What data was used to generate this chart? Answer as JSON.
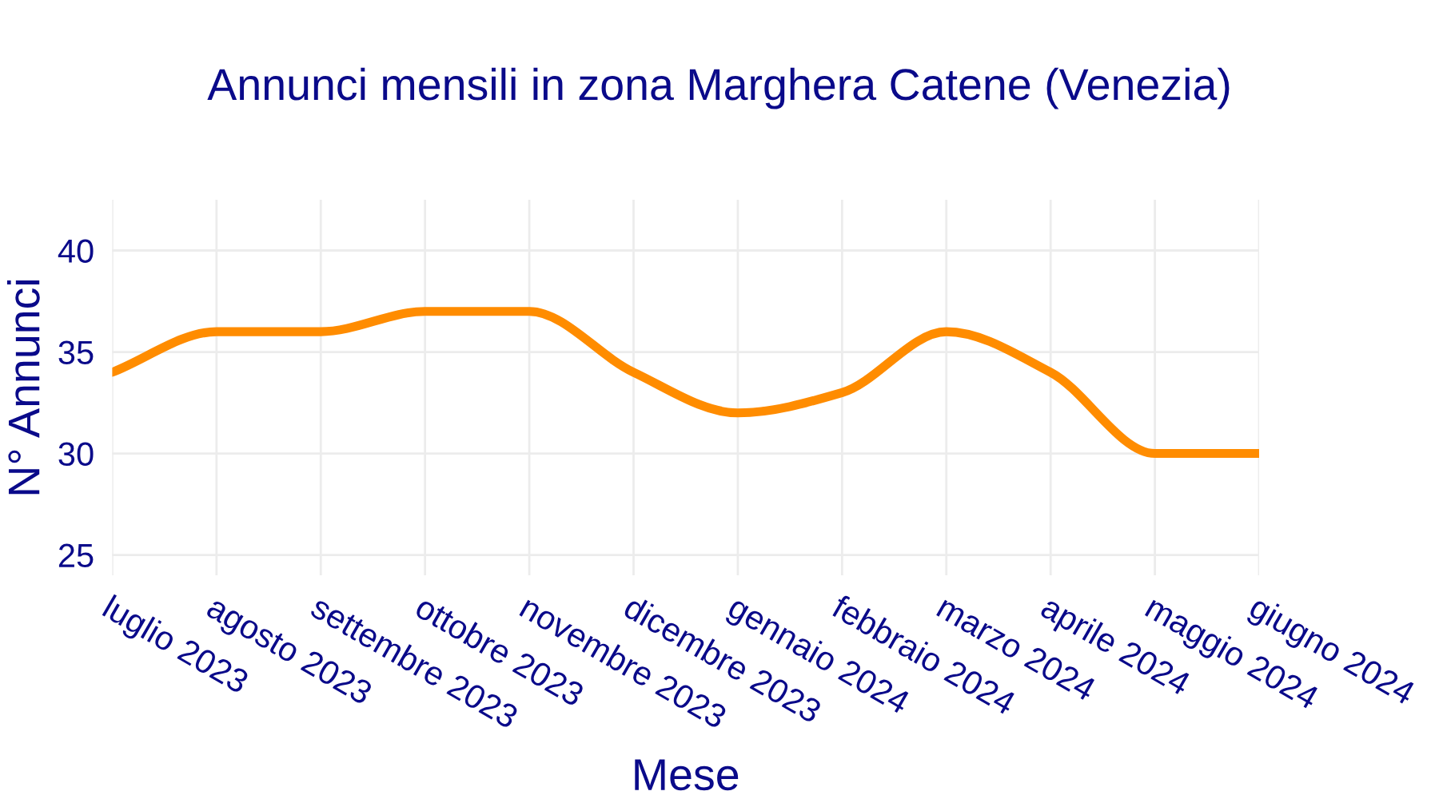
{
  "chart_data": {
    "type": "line",
    "title": "Annunci mensili in zona Marghera Catene (Venezia)",
    "xlabel": "Mese",
    "ylabel": "N° Annunci",
    "categories": [
      "luglio 2023",
      "agosto 2023",
      "settembre 2023",
      "ottobre 2023",
      "novembre 2023",
      "dicembre 2023",
      "gennaio 2024",
      "febbraio 2024",
      "marzo 2024",
      "aprile 2024",
      "maggio 2024",
      "giugno 2024"
    ],
    "series": [
      {
        "color": "#ff8c00",
        "values": [
          34,
          36,
          36,
          37,
          37,
          34,
          32,
          33,
          36,
          34,
          30,
          30
        ]
      }
    ],
    "ylim": [
      24,
      42.5
    ],
    "yticks": [
      25,
      30,
      35,
      40
    ],
    "grid": true,
    "marker": "none",
    "line_style": "solid",
    "legend": false
  }
}
